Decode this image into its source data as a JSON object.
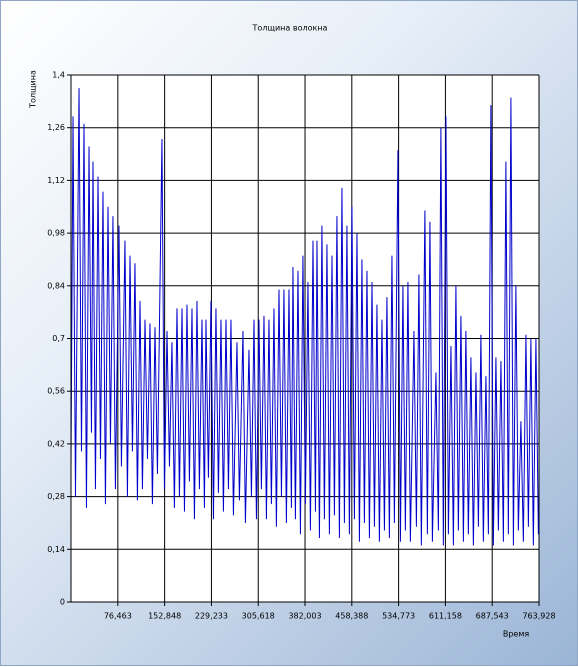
{
  "chart_data": {
    "type": "line",
    "title": "Толщина волокна",
    "x_label": "Время",
    "y_label": "Толщина",
    "xlim": [
      0,
      763.928
    ],
    "ylim": [
      0,
      1.4
    ],
    "grid": true,
    "xticks": [
      {
        "value": 76.463,
        "label": "76,463"
      },
      {
        "value": 152.848,
        "label": "152,848"
      },
      {
        "value": 229.233,
        "label": "229,233"
      },
      {
        "value": 305.618,
        "label": "305,618"
      },
      {
        "value": 382.003,
        "label": "382,003"
      },
      {
        "value": 458.388,
        "label": "458,388"
      },
      {
        "value": 534.773,
        "label": "534,773"
      },
      {
        "value": 611.158,
        "label": "611,158"
      },
      {
        "value": 687.543,
        "label": "687,543"
      },
      {
        "value": 763.928,
        "label": "763,928"
      }
    ],
    "yticks": [
      0,
      {
        "value": 0.14,
        "label": "0,14"
      },
      {
        "value": 0.28,
        "label": "0,28"
      },
      {
        "value": 0.42,
        "label": "0,42"
      },
      {
        "value": 0.56,
        "label": "0,56"
      },
      {
        "value": 0.7,
        "label": "0,7"
      },
      {
        "value": 0.84,
        "label": "0,84"
      },
      {
        "value": 0.98,
        "label": "0,98"
      },
      {
        "value": 1.12,
        "label": "1,12"
      },
      {
        "value": 1.26,
        "label": "1,26"
      },
      {
        "value": 1.4,
        "label": "1,4"
      }
    ],
    "x": [
      0,
      3.3,
      7.3,
      13.1,
      17.1,
      21.2,
      25.2,
      29.4,
      33.4,
      35.9,
      39.9,
      44.1,
      48.1,
      52.2,
      56.2,
      60.4,
      64.4,
      68.5,
      72.5,
      78.3,
      82.3,
      88.1,
      92.1,
      96.3,
      100.3,
      104.4,
      108.4,
      112.6,
      116.6,
      120.8,
      124.8,
      128.9,
      132.9,
      137.1,
      141.1,
      148.5,
      152.5,
      156.7,
      160.7,
      164.8,
      168.8,
      173.0,
      177.0,
      181.2,
      185.2,
      189.3,
      193.3,
      197.5,
      201.5,
      205.6,
      209.6,
      213.8,
      217.8,
      220.3,
      224.3,
      228.5,
      232.5,
      236.6,
      240.6,
      244.8,
      248.8,
      253.0,
      257.0,
      261.1,
      265.1,
      270.9,
      274.9,
      280.7,
      284.7,
      290.5,
      294.5,
      298.7,
      302.7,
      306.8,
      310.8,
      315.0,
      319.0,
      323.1,
      327.1,
      331.3,
      335.3,
      339.5,
      343.5,
      347.6,
      351.6,
      355.8,
      359.8,
      362.3,
      366.3,
      370.5,
      374.5,
      378.6,
      382.6,
      386.8,
      390.8,
      395.0,
      399.0,
      401.5,
      405.5,
      409.6,
      413.6,
      417.8,
      421.8,
      426.0,
      430.0,
      434.1,
      438.1,
      442.3,
      446.3,
      450.4,
      454.4,
      458.6,
      462.6,
      466.8,
      470.8,
      474.9,
      478.9,
      483.1,
      487.1,
      491.3,
      495.3,
      499.4,
      503.4,
      507.6,
      511.6,
      515.7,
      519.7,
      523.9,
      527.9,
      533.7,
      537.7,
      541.8,
      545.8,
      550.0,
      554.0,
      559.8,
      563.8,
      567.9,
      571.9,
      577.7,
      581.7,
      585.9,
      589.9,
      595.7,
      599.7,
      603.8,
      607.8,
      612.0,
      616.0,
      620.2,
      624.2,
      628.3,
      632.3,
      636.5,
      640.5,
      644.6,
      648.6,
      652.8,
      656.8,
      661.0,
      665.0,
      669.1,
      673.1,
      677.3,
      681.3,
      685.4,
      689.4,
      693.6,
      697.6,
      701.8,
      705.8,
      709.9,
      713.9,
      718.1,
      722.1,
      726.2,
      730.2,
      734.4,
      738.4,
      742.6,
      746.6,
      750.7,
      754.7,
      758.9,
      762.9
    ],
    "series": [
      {
        "color": "#0000cc",
        "values": [
          0.36,
          1.29,
          0.28,
          1.365,
          0.4,
          1.27,
          0.25,
          1.21,
          0.45,
          1.17,
          0.3,
          1.13,
          0.38,
          1.09,
          0.26,
          1.05,
          0.42,
          1.025,
          0.3,
          1.0,
          0.36,
          0.96,
          0.28,
          0.92,
          0.4,
          0.9,
          0.27,
          0.8,
          0.3,
          0.75,
          0.38,
          0.74,
          0.26,
          0.73,
          0.34,
          1.23,
          0.3,
          0.72,
          0.36,
          0.69,
          0.25,
          0.78,
          0.28,
          0.78,
          0.24,
          0.79,
          0.32,
          0.78,
          0.22,
          0.8,
          0.3,
          0.75,
          0.25,
          0.75,
          0.33,
          0.8,
          0.22,
          0.78,
          0.29,
          0.75,
          0.24,
          0.75,
          0.3,
          0.75,
          0.23,
          0.69,
          0.27,
          0.72,
          0.21,
          0.67,
          0.28,
          0.75,
          0.22,
          0.75,
          0.3,
          0.76,
          0.22,
          0.75,
          0.26,
          0.78,
          0.2,
          0.83,
          0.28,
          0.83,
          0.21,
          0.83,
          0.25,
          0.89,
          0.22,
          0.88,
          0.18,
          0.92,
          0.26,
          0.85,
          0.19,
          0.96,
          0.24,
          0.96,
          0.17,
          1.0,
          0.22,
          0.95,
          0.18,
          0.92,
          0.23,
          1.025,
          0.17,
          1.1,
          0.21,
          1.0,
          0.18,
          1.05,
          0.22,
          0.98,
          0.16,
          0.91,
          0.21,
          0.88,
          0.17,
          0.85,
          0.2,
          0.79,
          0.16,
          0.75,
          0.19,
          0.81,
          0.17,
          0.92,
          0.21,
          1.2,
          0.16,
          0.84,
          0.19,
          0.85,
          0.16,
          0.72,
          0.2,
          0.87,
          0.15,
          1.04,
          0.18,
          1.01,
          0.16,
          0.61,
          0.19,
          1.26,
          0.15,
          1.29,
          0.18,
          0.68,
          0.15,
          0.84,
          0.19,
          0.76,
          0.16,
          0.72,
          0.18,
          0.65,
          0.15,
          0.61,
          0.2,
          0.71,
          0.16,
          0.6,
          0.18,
          1.32,
          0.15,
          0.65,
          0.19,
          0.64,
          0.16,
          1.17,
          0.18,
          1.34,
          0.15,
          0.84,
          0.19,
          0.48,
          0.16,
          0.71,
          0.2,
          0.7,
          0.15,
          0.7,
          0.18
        ]
      }
    ]
  }
}
